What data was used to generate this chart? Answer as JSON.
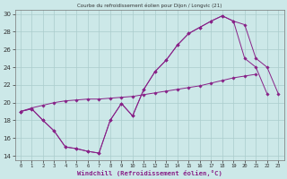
{
  "title": "Courbe du refroidissement éolien pour Dijon / Longvic (21)",
  "xlabel": "Windchill (Refroidissement éolien,°C)",
  "xlim": [
    -0.5,
    23.5
  ],
  "ylim": [
    13.5,
    30.5
  ],
  "xticks": [
    0,
    1,
    2,
    3,
    4,
    5,
    6,
    7,
    8,
    9,
    10,
    11,
    12,
    13,
    14,
    15,
    16,
    17,
    18,
    19,
    20,
    21,
    22,
    23
  ],
  "yticks": [
    14,
    16,
    18,
    20,
    22,
    24,
    26,
    28,
    30
  ],
  "bg_color": "#cce8e8",
  "line_color": "#882288",
  "grid_color": "#aacccc",
  "series1_x": [
    0,
    1,
    2,
    3,
    4,
    5,
    6,
    7,
    8,
    9,
    10,
    11,
    12,
    13,
    14,
    15,
    16,
    17,
    18,
    19,
    20,
    21,
    22
  ],
  "series1_y": [
    19.0,
    19.3,
    18.0,
    16.8,
    15.0,
    14.8,
    14.5,
    14.3,
    18.0,
    19.9,
    18.5,
    21.5,
    23.5,
    24.8,
    26.5,
    27.8,
    28.5,
    29.2,
    29.8,
    29.2,
    25.0,
    24.0,
    21.0
  ],
  "series2_x": [
    0,
    1,
    2,
    3,
    4,
    5,
    6,
    7,
    8,
    9,
    10,
    11,
    12,
    13,
    14,
    15,
    16,
    17,
    18,
    19,
    20,
    21,
    22,
    23
  ],
  "series2_y": [
    19.0,
    19.3,
    18.0,
    16.8,
    15.0,
    14.8,
    14.5,
    14.3,
    18.0,
    19.9,
    18.5,
    21.5,
    23.5,
    24.8,
    26.5,
    27.8,
    28.5,
    29.2,
    29.8,
    29.2,
    28.8,
    25.0,
    24.0,
    21.0
  ],
  "series3_x": [
    0,
    1,
    2,
    3,
    4,
    5,
    6,
    7,
    8,
    9,
    10,
    11,
    12,
    13,
    14,
    15,
    16,
    17,
    18,
    19,
    20,
    21
  ],
  "series3_y": [
    19.0,
    19.4,
    19.7,
    20.0,
    20.2,
    20.3,
    20.4,
    20.4,
    20.5,
    20.6,
    20.7,
    20.9,
    21.1,
    21.3,
    21.5,
    21.7,
    21.9,
    22.2,
    22.5,
    22.8,
    23.0,
    23.2
  ]
}
